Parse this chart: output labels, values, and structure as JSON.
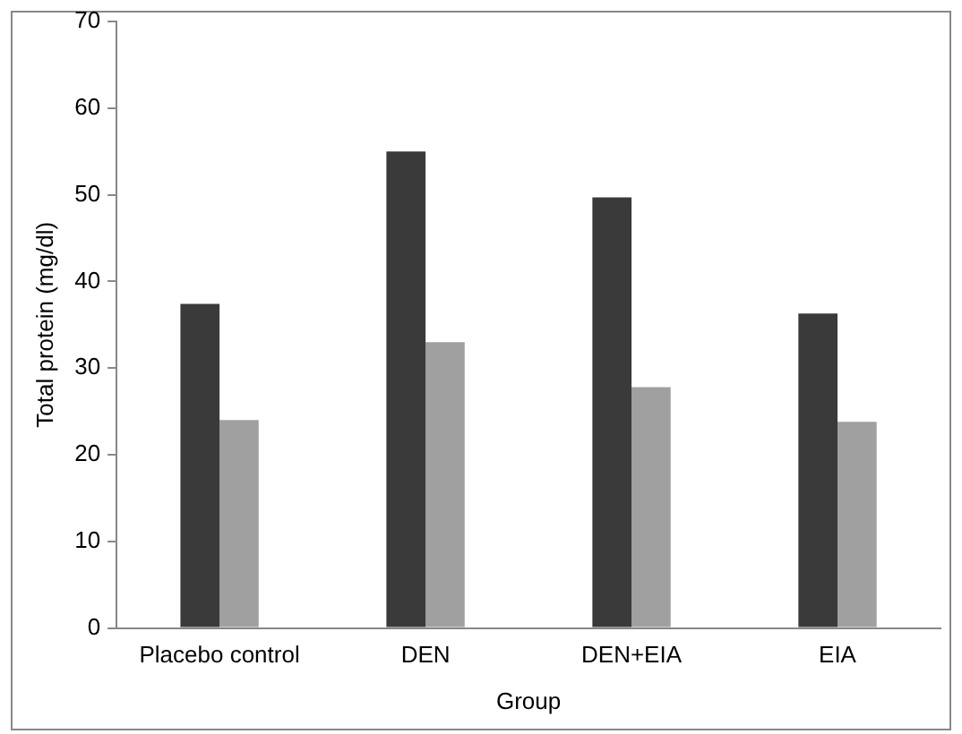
{
  "chart_data": {
    "type": "bar",
    "xlabel": "Group",
    "ylabel": "Total protein (mg/dl)",
    "categories": [
      "Placebo control",
      "DEN",
      "DEN+EIA",
      "EIA"
    ],
    "series": [
      {
        "color": "#3a3a3a",
        "values": [
          37.4,
          55,
          49.7,
          36.3
        ]
      },
      {
        "color": "#a0a0a0",
        "values": [
          24,
          33,
          27.8,
          23.8
        ]
      }
    ],
    "ylim": [
      0,
      70
    ],
    "yticks": [
      0,
      10,
      20,
      30,
      40,
      50,
      60,
      70
    ],
    "grid": false,
    "legend": false
  }
}
